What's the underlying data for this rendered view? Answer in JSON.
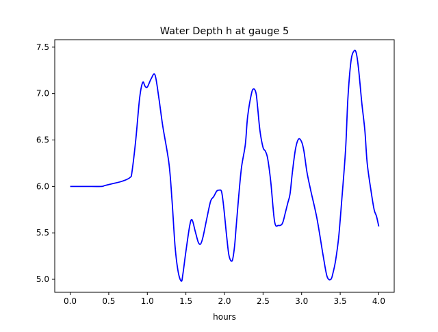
{
  "chart_data": {
    "type": "line",
    "title": "Water Depth h at gauge 5",
    "xlabel": "hours",
    "ylabel": "",
    "xlim": [
      -0.2,
      4.2
    ],
    "ylim": [
      4.86,
      7.58
    ],
    "xticks": [
      0.0,
      0.5,
      1.0,
      1.5,
      2.0,
      2.5,
      3.0,
      3.5,
      4.0
    ],
    "xtick_labels": [
      "0.0",
      "0.5",
      "1.0",
      "1.5",
      "2.0",
      "2.5",
      "3.0",
      "3.5",
      "4.0"
    ],
    "yticks": [
      5.0,
      5.5,
      6.0,
      6.5,
      7.0,
      7.5
    ],
    "ytick_labels": [
      "5.0",
      "5.5",
      "6.0",
      "6.5",
      "7.0",
      "7.5"
    ],
    "grid": false,
    "series": [
      {
        "color": "#0000ff",
        "x": [
          0.0,
          0.2,
          0.4,
          0.45,
          0.55,
          0.65,
          0.72,
          0.78,
          0.8,
          0.85,
          0.9,
          0.94,
          0.97,
          1.0,
          1.05,
          1.1,
          1.15,
          1.2,
          1.28,
          1.32,
          1.36,
          1.4,
          1.44,
          1.46,
          1.5,
          1.55,
          1.58,
          1.62,
          1.66,
          1.69,
          1.72,
          1.77,
          1.82,
          1.86,
          1.9,
          1.93,
          1.96,
          1.98,
          2.0,
          2.03,
          2.06,
          2.1,
          2.13,
          2.15,
          2.18,
          2.22,
          2.27,
          2.3,
          2.35,
          2.38,
          2.41,
          2.43,
          2.46,
          2.5,
          2.53,
          2.56,
          2.6,
          2.65,
          2.7,
          2.75,
          2.79,
          2.82,
          2.85,
          2.88,
          2.92,
          2.96,
          3.0,
          3.03,
          3.07,
          3.12,
          3.2,
          3.28,
          3.33,
          3.38,
          3.41,
          3.44,
          3.48,
          3.52,
          3.57,
          3.6,
          3.64,
          3.68,
          3.71,
          3.74,
          3.78,
          3.82,
          3.85,
          3.9,
          3.94,
          3.97,
          4.0
        ],
        "y": [
          6.0,
          6.0,
          6.0,
          6.01,
          6.03,
          6.05,
          6.07,
          6.1,
          6.15,
          6.5,
          6.95,
          7.12,
          7.08,
          7.07,
          7.16,
          7.2,
          6.95,
          6.65,
          6.25,
          5.85,
          5.35,
          5.08,
          4.98,
          5.05,
          5.3,
          5.58,
          5.64,
          5.52,
          5.4,
          5.38,
          5.45,
          5.65,
          5.84,
          5.89,
          5.95,
          5.96,
          5.95,
          5.85,
          5.7,
          5.45,
          5.25,
          5.2,
          5.35,
          5.55,
          5.85,
          6.2,
          6.45,
          6.75,
          7.0,
          7.05,
          7.0,
          6.85,
          6.6,
          6.42,
          6.38,
          6.3,
          6.05,
          5.62,
          5.58,
          5.6,
          5.72,
          5.82,
          5.92,
          6.15,
          6.4,
          6.51,
          6.48,
          6.38,
          6.15,
          5.95,
          5.65,
          5.25,
          5.03,
          5.0,
          5.08,
          5.2,
          5.45,
          5.85,
          6.4,
          6.95,
          7.35,
          7.46,
          7.43,
          7.25,
          6.9,
          6.6,
          6.25,
          5.95,
          5.75,
          5.68,
          5.57
        ]
      }
    ]
  }
}
